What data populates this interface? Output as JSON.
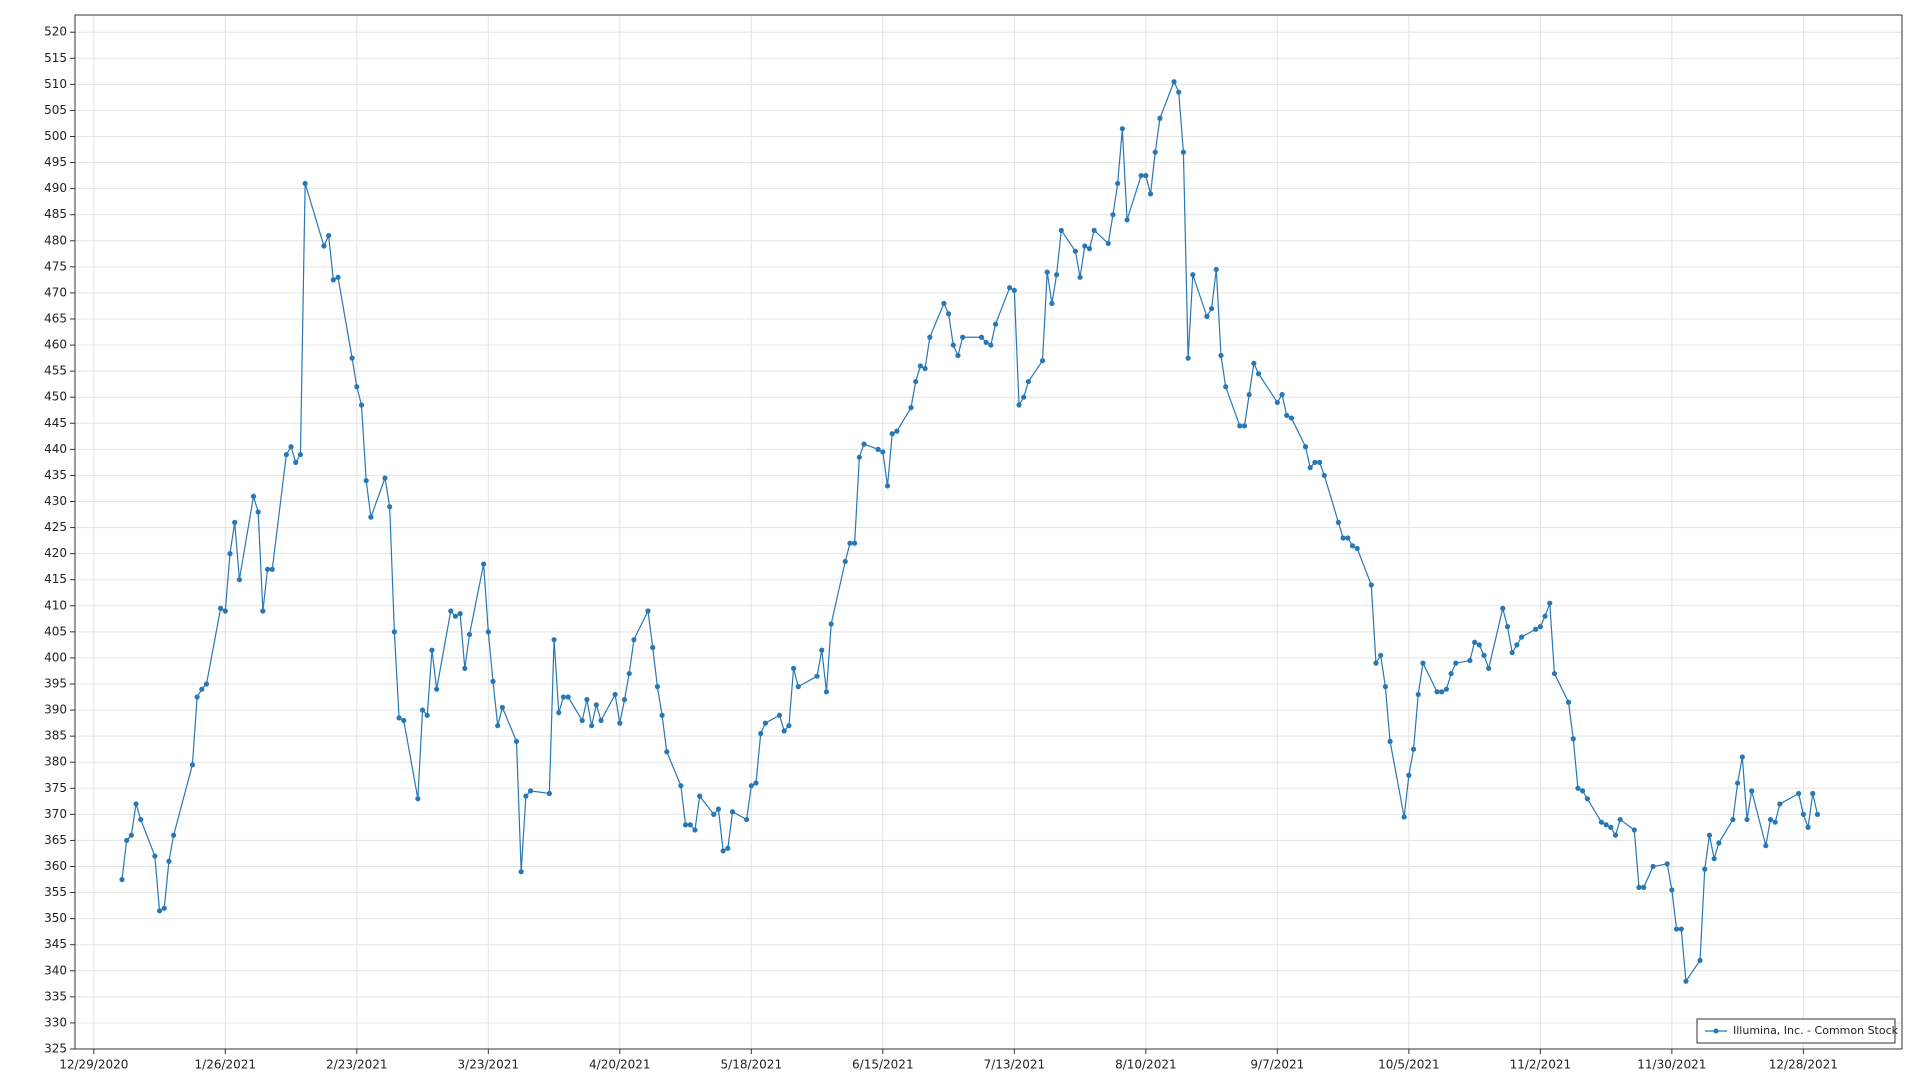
{
  "chart_data": {
    "type": "line",
    "grid": true,
    "legend": "lower right",
    "xlim": [
      "12/25/2020",
      "1/18/2022"
    ],
    "xticks": [
      "12/29/2020",
      "1/26/2021",
      "2/23/2021",
      "3/23/2021",
      "4/20/2021",
      "5/18/2021",
      "6/15/2021",
      "7/13/2021",
      "8/10/2021",
      "9/7/2021",
      "10/5/2021",
      "11/2/2021",
      "11/30/2021",
      "12/28/2021"
    ],
    "ylim": [
      325,
      523.3
    ],
    "yticks": [
      325,
      330,
      335,
      340,
      345,
      350,
      355,
      360,
      365,
      370,
      375,
      380,
      385,
      390,
      395,
      400,
      405,
      410,
      415,
      420,
      425,
      430,
      435,
      440,
      445,
      450,
      455,
      460,
      465,
      470,
      475,
      480,
      485,
      490,
      495,
      500,
      505,
      510,
      515,
      520
    ],
    "x": [
      "1/4/2021",
      "1/5/2021",
      "1/6/2021",
      "1/7/2021",
      "1/8/2021",
      "1/11/2021",
      "1/12/2021",
      "1/13/2021",
      "1/14/2021",
      "1/15/2021",
      "1/19/2021",
      "1/20/2021",
      "1/21/2021",
      "1/22/2021",
      "1/25/2021",
      "1/26/2021",
      "1/27/2021",
      "1/28/2021",
      "1/29/2021",
      "2/1/2021",
      "2/2/2021",
      "2/3/2021",
      "2/4/2021",
      "2/5/2021",
      "2/8/2021",
      "2/9/2021",
      "2/10/2021",
      "2/11/2021",
      "2/12/2021",
      "2/16/2021",
      "2/17/2021",
      "2/18/2021",
      "2/19/2021",
      "2/22/2021",
      "2/23/2021",
      "2/24/2021",
      "2/25/2021",
      "2/26/2021",
      "3/1/2021",
      "3/2/2021",
      "3/3/2021",
      "3/4/2021",
      "3/5/2021",
      "3/8/2021",
      "3/9/2021",
      "3/10/2021",
      "3/11/2021",
      "3/12/2021",
      "3/15/2021",
      "3/16/2021",
      "3/17/2021",
      "3/18/2021",
      "3/19/2021",
      "3/22/2021",
      "3/23/2021",
      "3/24/2021",
      "3/25/2021",
      "3/26/2021",
      "3/29/2021",
      "3/30/2021",
      "3/31/2021",
      "4/1/2021",
      "4/5/2021",
      "4/6/2021",
      "4/7/2021",
      "4/8/2021",
      "4/9/2021",
      "4/12/2021",
      "4/13/2021",
      "4/14/2021",
      "4/15/2021",
      "4/16/2021",
      "4/19/2021",
      "4/20/2021",
      "4/21/2021",
      "4/22/2021",
      "4/23/2021",
      "4/26/2021",
      "4/27/2021",
      "4/28/2021",
      "4/29/2021",
      "4/30/2021",
      "5/3/2021",
      "5/4/2021",
      "5/5/2021",
      "5/6/2021",
      "5/7/2021",
      "5/10/2021",
      "5/11/2021",
      "5/12/2021",
      "5/13/2021",
      "5/14/2021",
      "5/17/2021",
      "5/18/2021",
      "5/19/2021",
      "5/20/2021",
      "5/21/2021",
      "5/24/2021",
      "5/25/2021",
      "5/26/2021",
      "5/27/2021",
      "5/28/2021",
      "6/1/2021",
      "6/2/2021",
      "6/3/2021",
      "6/4/2021",
      "6/7/2021",
      "6/8/2021",
      "6/9/2021",
      "6/10/2021",
      "6/11/2021",
      "6/14/2021",
      "6/15/2021",
      "6/16/2021",
      "6/17/2021",
      "6/18/2021",
      "6/21/2021",
      "6/22/2021",
      "6/23/2021",
      "6/24/2021",
      "6/25/2021",
      "6/28/2021",
      "6/29/2021",
      "6/30/2021",
      "7/1/2021",
      "7/2/2021",
      "7/6/2021",
      "7/7/2021",
      "7/8/2021",
      "7/9/2021",
      "7/12/2021",
      "7/13/2021",
      "7/14/2021",
      "7/15/2021",
      "7/16/2021",
      "7/19/2021",
      "7/20/2021",
      "7/21/2021",
      "7/22/2021",
      "7/23/2021",
      "7/26/2021",
      "7/27/2021",
      "7/28/2021",
      "7/29/2021",
      "7/30/2021",
      "8/2/2021",
      "8/3/2021",
      "8/4/2021",
      "8/5/2021",
      "8/6/2021",
      "8/9/2021",
      "8/10/2021",
      "8/11/2021",
      "8/12/2021",
      "8/13/2021",
      "8/16/2021",
      "8/17/2021",
      "8/18/2021",
      "8/19/2021",
      "8/20/2021",
      "8/23/2021",
      "8/24/2021",
      "8/25/2021",
      "8/26/2021",
      "8/27/2021",
      "8/30/2021",
      "8/31/2021",
      "9/1/2021",
      "9/2/2021",
      "9/3/2021",
      "9/7/2021",
      "9/8/2021",
      "9/9/2021",
      "9/10/2021",
      "9/13/2021",
      "9/14/2021",
      "9/15/2021",
      "9/16/2021",
      "9/17/2021",
      "9/20/2021",
      "9/21/2021",
      "9/22/2021",
      "9/23/2021",
      "9/24/2021",
      "9/27/2021",
      "9/28/2021",
      "9/29/2021",
      "9/30/2021",
      "10/1/2021",
      "10/4/2021",
      "10/5/2021",
      "10/6/2021",
      "10/7/2021",
      "10/8/2021",
      "10/11/2021",
      "10/12/2021",
      "10/13/2021",
      "10/14/2021",
      "10/15/2021",
      "10/18/2021",
      "10/19/2021",
      "10/20/2021",
      "10/21/2021",
      "10/22/2021",
      "10/25/2021",
      "10/26/2021",
      "10/27/2021",
      "10/28/2021",
      "10/29/2021",
      "11/1/2021",
      "11/2/2021",
      "11/3/2021",
      "11/4/2021",
      "11/5/2021",
      "11/8/2021",
      "11/9/2021",
      "11/10/2021",
      "11/11/2021",
      "11/12/2021",
      "11/15/2021",
      "11/16/2021",
      "11/17/2021",
      "11/18/2021",
      "11/19/2021",
      "11/22/2021",
      "11/23/2021",
      "11/24/2021",
      "11/26/2021",
      "11/29/2021",
      "11/30/2021",
      "12/1/2021",
      "12/2/2021",
      "12/3/2021",
      "12/6/2021",
      "12/7/2021",
      "12/8/2021",
      "12/9/2021",
      "12/10/2021",
      "12/13/2021",
      "12/14/2021",
      "12/15/2021",
      "12/16/2021",
      "12/17/2021",
      "12/20/2021",
      "12/21/2021",
      "12/22/2021",
      "12/23/2021",
      "12/27/2021",
      "12/28/2021",
      "12/29/2021",
      "12/30/2021",
      "12/31/2021"
    ],
    "series": [
      {
        "name": "Illumina, Inc. - Common Stock",
        "color": "#2878b5",
        "values": [
          357.5,
          365,
          366,
          372,
          369,
          362,
          351.5,
          352,
          361,
          366,
          379.5,
          392.5,
          394,
          395,
          409.5,
          409,
          420,
          426,
          415,
          431,
          428,
          409,
          417,
          417,
          439,
          440.5,
          437.5,
          439,
          491,
          479,
          481,
          472.5,
          473,
          457.5,
          452,
          448.5,
          434,
          427,
          434.5,
          429,
          405,
          388.5,
          388,
          373,
          390,
          389,
          401.5,
          394,
          409,
          408,
          408.5,
          398,
          404.5,
          418,
          405,
          395.5,
          387,
          390.5,
          384,
          359,
          373.5,
          374.5,
          374,
          403.5,
          389.5,
          392.5,
          392.5,
          388,
          392,
          387,
          391,
          388,
          393,
          387.5,
          392,
          397,
          403.5,
          409,
          402,
          394.5,
          389,
          382,
          375.5,
          368,
          368,
          367,
          373.5,
          370,
          371,
          363,
          363.5,
          370.5,
          369,
          375.5,
          376,
          385.5,
          387.5,
          389,
          386,
          387,
          398,
          394.5,
          396.5,
          401.5,
          393.5,
          406.5,
          418.5,
          422,
          422,
          438.5,
          441,
          440,
          439.5,
          433,
          443,
          443.5,
          448,
          453,
          456,
          455.5,
          461.5,
          468,
          466,
          460,
          458,
          461.5,
          461.5,
          460.5,
          460,
          464,
          471,
          470.5,
          448.5,
          450,
          453,
          457,
          474,
          468,
          473.5,
          482,
          478,
          473,
          479,
          478.5,
          482,
          479.5,
          485,
          491,
          501.5,
          484,
          492.5,
          492.5,
          489,
          497,
          503.5,
          510.5,
          508.5,
          497,
          457.5,
          473.5,
          465.5,
          467,
          474.5,
          458,
          452,
          444.5,
          444.5,
          450.5,
          456.5,
          454.5,
          449,
          450.5,
          446.5,
          446,
          440.5,
          436.5,
          437.5,
          437.5,
          435,
          426,
          423,
          423,
          421.5,
          421,
          414,
          399,
          400.5,
          394.5,
          384,
          369.5,
          377.5,
          382.5,
          393,
          399,
          393.5,
          393.5,
          394,
          397,
          399,
          399.5,
          403,
          402.5,
          400.5,
          398,
          409.5,
          406,
          401,
          402.5,
          404,
          405.5,
          406,
          408,
          410.5,
          397,
          391.5,
          384.5,
          375,
          374.5,
          373,
          368.5,
          368,
          367.5,
          366,
          369,
          367,
          356,
          356,
          360,
          360.5,
          355.5,
          348,
          348,
          338,
          342,
          359.5,
          366,
          361.5,
          364.5,
          369,
          376,
          381,
          369,
          374.5,
          364,
          369,
          368.5,
          372,
          374,
          370,
          367.5,
          374,
          370
        ]
      }
    ]
  }
}
